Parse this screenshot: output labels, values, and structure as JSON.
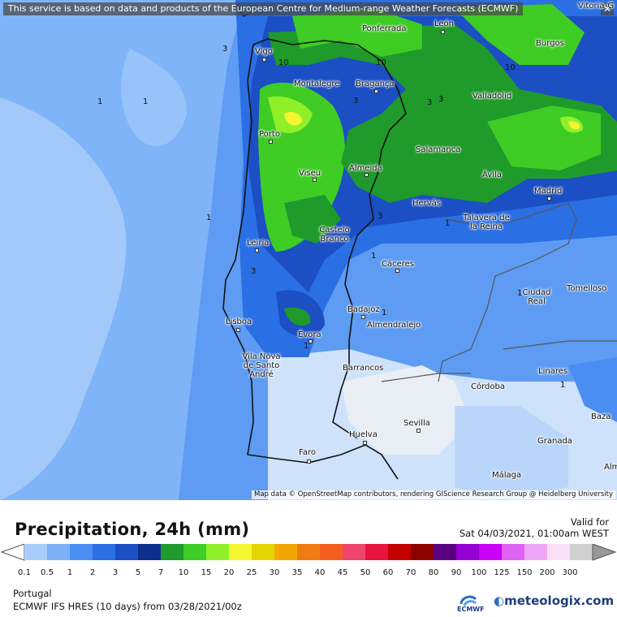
{
  "banner": {
    "text": "This service is based on data and products of the European Centre for Medium-range Weather Forecasts (ECMWF)",
    "close_icon": "close-icon"
  },
  "map": {
    "cities": [
      {
        "name": "Vitoria-G",
        "label": "Vitoria-G"
      },
      {
        "name": "leon",
        "label": "León"
      },
      {
        "name": "ponferrada",
        "label": "Ponferrada"
      },
      {
        "name": "vigo",
        "label": "Vigo"
      },
      {
        "name": "burgos",
        "label": "Burgos"
      },
      {
        "name": "montalegre",
        "label": "Montalegre"
      },
      {
        "name": "braganca",
        "label": "Bragança"
      },
      {
        "name": "valladolid",
        "label": "Valladolid"
      },
      {
        "name": "porto",
        "label": "Porto"
      },
      {
        "name": "salamanca",
        "label": "Salamanca"
      },
      {
        "name": "viseu",
        "label": "Viseu"
      },
      {
        "name": "almeida",
        "label": "Almeida"
      },
      {
        "name": "avila",
        "label": "Ávila"
      },
      {
        "name": "madrid",
        "label": "Madrid"
      },
      {
        "name": "hervas",
        "label": "Hervás"
      },
      {
        "name": "talavera",
        "label": "Talavera de la Reina"
      },
      {
        "name": "castelo-branco",
        "label": "Castelo Branco"
      },
      {
        "name": "leiria",
        "label": "Leiria"
      },
      {
        "name": "caceres",
        "label": "Cáceres"
      },
      {
        "name": "ciudad-real",
        "label": "Ciudad Real"
      },
      {
        "name": "tomelloso",
        "label": "Tomelloso"
      },
      {
        "name": "badajoz",
        "label": "Badajoz"
      },
      {
        "name": "lisboa",
        "label": "Lisboa"
      },
      {
        "name": "almendralejo",
        "label": "Almendralejo"
      },
      {
        "name": "evora",
        "label": "Évora"
      },
      {
        "name": "vila-nova",
        "label": "Vila Nova de Santo André"
      },
      {
        "name": "barrancos",
        "label": "Barrancos"
      },
      {
        "name": "linares",
        "label": "Linares"
      },
      {
        "name": "cordoba",
        "label": "Córdoba"
      },
      {
        "name": "baza",
        "label": "Baza"
      },
      {
        "name": "sevilla",
        "label": "Sevilla"
      },
      {
        "name": "granada",
        "label": "Granada"
      },
      {
        "name": "huelva",
        "label": "Huelva"
      },
      {
        "name": "faro",
        "label": "Faro"
      },
      {
        "name": "malaga",
        "label": "Málaga"
      },
      {
        "name": "alm",
        "label": "Alm"
      }
    ],
    "isolines": [
      "10",
      "10",
      "10",
      "3",
      "3",
      "3",
      "3",
      "1",
      "1",
      "1",
      "1",
      "3",
      "1",
      "1",
      "3",
      "1",
      "1",
      "1"
    ],
    "attribution": "Map data © OpenStreetMap contributors, rendering GIScience Research Group @ Heidelberg University"
  },
  "legend": {
    "title": "Precipitation, 24h (mm)",
    "valid_label": "Valid for",
    "valid_value": "Sat 04/03/2021, 01:00am WEST",
    "thresholds": [
      "0.1",
      "0.5",
      "1",
      "2",
      "3",
      "5",
      "7",
      "10",
      "15",
      "20",
      "25",
      "30",
      "35",
      "40",
      "45",
      "50",
      "60",
      "70",
      "80",
      "90",
      "100",
      "125",
      "150",
      "200",
      "300"
    ],
    "colors": [
      "#a9cdfb",
      "#7cb0f7",
      "#4b8ef2",
      "#2a6fe4",
      "#1b4fc3",
      "#0e2e8d",
      "#1f9a2b",
      "#3fcc24",
      "#8ff02a",
      "#f5f531",
      "#e3d500",
      "#f2a700",
      "#ee7c10",
      "#f35e1e",
      "#f0456c",
      "#e8143e",
      "#c30000",
      "#8d0000",
      "#5a0080",
      "#9400d6",
      "#cc00f2",
      "#e061f2",
      "#eea6f5",
      "#fae0fb",
      "#d0d0d0"
    ],
    "region": "Portugal",
    "model_line": "ECMWF IFS HRES (10 days) from 03/28/2021/00z",
    "ecmwf_logo_text": "ECMWF",
    "meteologix_logo_text": "meteologix.com"
  }
}
